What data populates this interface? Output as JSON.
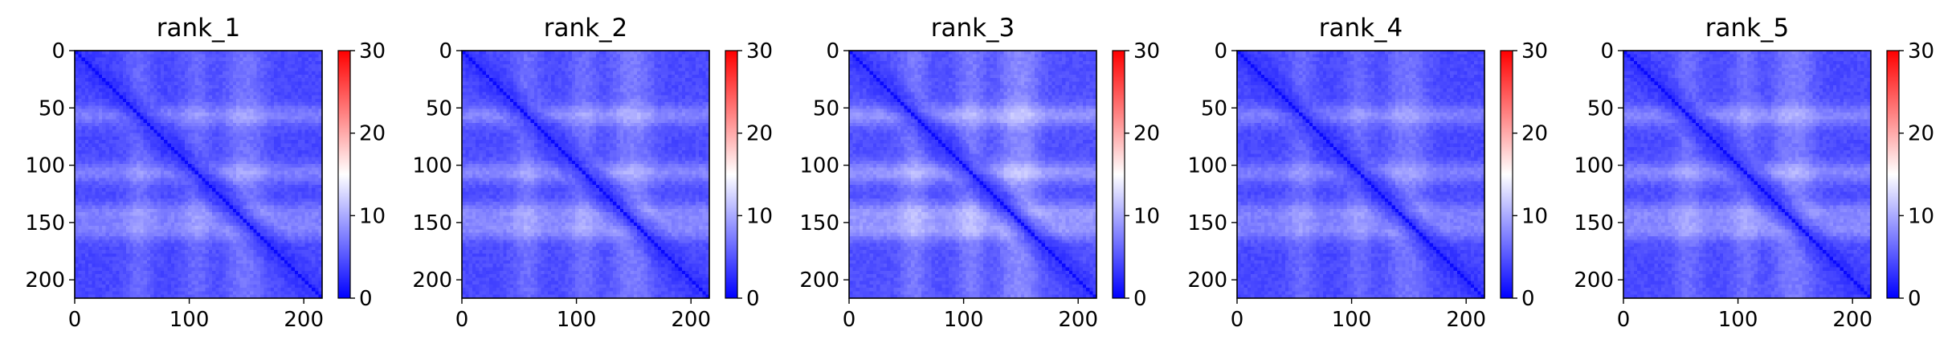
{
  "chart_data": [
    {
      "type": "heatmap",
      "title": "rank_1",
      "xlim": [
        0,
        216
      ],
      "ylim": [
        216,
        0
      ],
      "xticks": [
        0,
        100,
        200
      ],
      "yticks": [
        0,
        50,
        100,
        150,
        200
      ],
      "colorbar": {
        "range": [
          0,
          30
        ],
        "ticks": [
          0,
          10,
          20,
          30
        ],
        "colormap": "bwr"
      },
      "description_values": {
        "diagonal": 0,
        "typical_offdiagonal_min": 2,
        "typical_offdiagonal_max": 12
      }
    },
    {
      "type": "heatmap",
      "title": "rank_2",
      "xlim": [
        0,
        216
      ],
      "ylim": [
        216,
        0
      ],
      "xticks": [
        0,
        100,
        200
      ],
      "yticks": [
        0,
        50,
        100,
        150,
        200
      ],
      "colorbar": {
        "range": [
          0,
          30
        ],
        "ticks": [
          0,
          10,
          20,
          30
        ],
        "colormap": "bwr"
      },
      "description_values": {
        "diagonal": 0,
        "typical_offdiagonal_min": 2,
        "typical_offdiagonal_max": 13
      }
    },
    {
      "type": "heatmap",
      "title": "rank_3",
      "xlim": [
        0,
        216
      ],
      "ylim": [
        216,
        0
      ],
      "xticks": [
        0,
        100,
        200
      ],
      "yticks": [
        0,
        50,
        100,
        150,
        200
      ],
      "colorbar": {
        "range": [
          0,
          30
        ],
        "ticks": [
          0,
          10,
          20,
          30
        ],
        "colormap": "bwr"
      },
      "description_values": {
        "diagonal": 0,
        "typical_offdiagonal_min": 2,
        "typical_offdiagonal_max": 15
      }
    },
    {
      "type": "heatmap",
      "title": "rank_4",
      "xlim": [
        0,
        216
      ],
      "ylim": [
        216,
        0
      ],
      "xticks": [
        0,
        100,
        200
      ],
      "yticks": [
        0,
        50,
        100,
        150,
        200
      ],
      "colorbar": {
        "range": [
          0,
          30
        ],
        "ticks": [
          0,
          10,
          20,
          30
        ],
        "colormap": "bwr"
      },
      "description_values": {
        "diagonal": 0,
        "typical_offdiagonal_min": 2,
        "typical_offdiagonal_max": 12
      }
    },
    {
      "type": "heatmap",
      "title": "rank_5",
      "xlim": [
        0,
        216
      ],
      "ylim": [
        216,
        0
      ],
      "xticks": [
        0,
        100,
        200
      ],
      "yticks": [
        0,
        50,
        100,
        150,
        200
      ],
      "colorbar": {
        "range": [
          0,
          30
        ],
        "ticks": [
          0,
          10,
          20,
          30
        ],
        "colormap": "bwr"
      },
      "description_values": {
        "diagonal": 0,
        "typical_offdiagonal_min": 2,
        "typical_offdiagonal_max": 13
      }
    }
  ],
  "colors": {
    "low": "#0000ff",
    "mid": "#ffffff",
    "high": "#ff0000"
  }
}
